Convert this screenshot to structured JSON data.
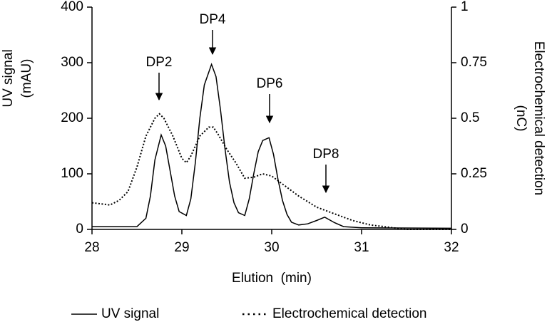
{
  "chart_data": {
    "type": "line",
    "xlabel": "Elution  (min)",
    "ylabel": [
      "UV signal",
      "(mAU)"
    ],
    "y2label": [
      "Electrochemical detection",
      "(nC)"
    ],
    "xlim": [
      28,
      32
    ],
    "xticks": [
      28,
      29,
      30,
      31,
      32
    ],
    "ylim": [
      0,
      400
    ],
    "yticks": [
      0,
      100,
      200,
      300,
      400
    ],
    "y2lim": [
      0,
      1
    ],
    "y2ticks": [
      0,
      0.25,
      0.5,
      0.75,
      1
    ],
    "annotations": [
      "DP2",
      "DP4",
      "DP6",
      "DP8"
    ],
    "series": [
      {
        "name": "UV signal",
        "color": "#000000",
        "style": "solid",
        "x": [
          28,
          28.5,
          28.6,
          28.65,
          28.7,
          28.77,
          28.82,
          28.87,
          28.92,
          28.97,
          29.05,
          29.1,
          29.15,
          29.2,
          29.25,
          29.33,
          29.38,
          29.43,
          29.48,
          29.53,
          29.58,
          29.63,
          29.7,
          29.75,
          29.8,
          29.85,
          29.9,
          29.97,
          30.02,
          30.07,
          30.12,
          30.17,
          30.22,
          30.3,
          30.4,
          30.5,
          30.59,
          30.7,
          30.8,
          31,
          32
        ],
        "values": [
          5,
          5,
          20,
          60,
          125,
          170,
          150,
          105,
          60,
          32,
          25,
          55,
          120,
          200,
          260,
          297,
          275,
          215,
          145,
          85,
          48,
          30,
          25,
          55,
          100,
          140,
          160,
          165,
          135,
          90,
          52,
          27,
          13,
          8,
          10,
          16,
          22,
          12,
          5,
          3,
          2
        ]
      },
      {
        "name": "Electrochemical detection",
        "color": "#000000",
        "style": "dotted",
        "axis": "y2",
        "x": [
          28,
          28.2,
          28.3,
          28.4,
          28.5,
          28.6,
          28.7,
          28.75,
          28.8,
          28.9,
          29.0,
          29.05,
          29.1,
          29.2,
          29.3,
          29.35,
          29.4,
          29.5,
          29.6,
          29.7,
          29.8,
          29.9,
          30.0,
          30.1,
          30.2,
          30.3,
          30.5,
          30.7,
          30.9,
          31.1,
          31.3,
          31.5,
          32
        ],
        "values": [
          0.12,
          0.11,
          0.13,
          0.17,
          0.28,
          0.42,
          0.5,
          0.52,
          0.5,
          0.42,
          0.32,
          0.3,
          0.33,
          0.42,
          0.46,
          0.46,
          0.43,
          0.36,
          0.3,
          0.23,
          0.235,
          0.25,
          0.24,
          0.21,
          0.18,
          0.15,
          0.1,
          0.07,
          0.04,
          0.02,
          0.01,
          0,
          0
        ]
      }
    ]
  }
}
